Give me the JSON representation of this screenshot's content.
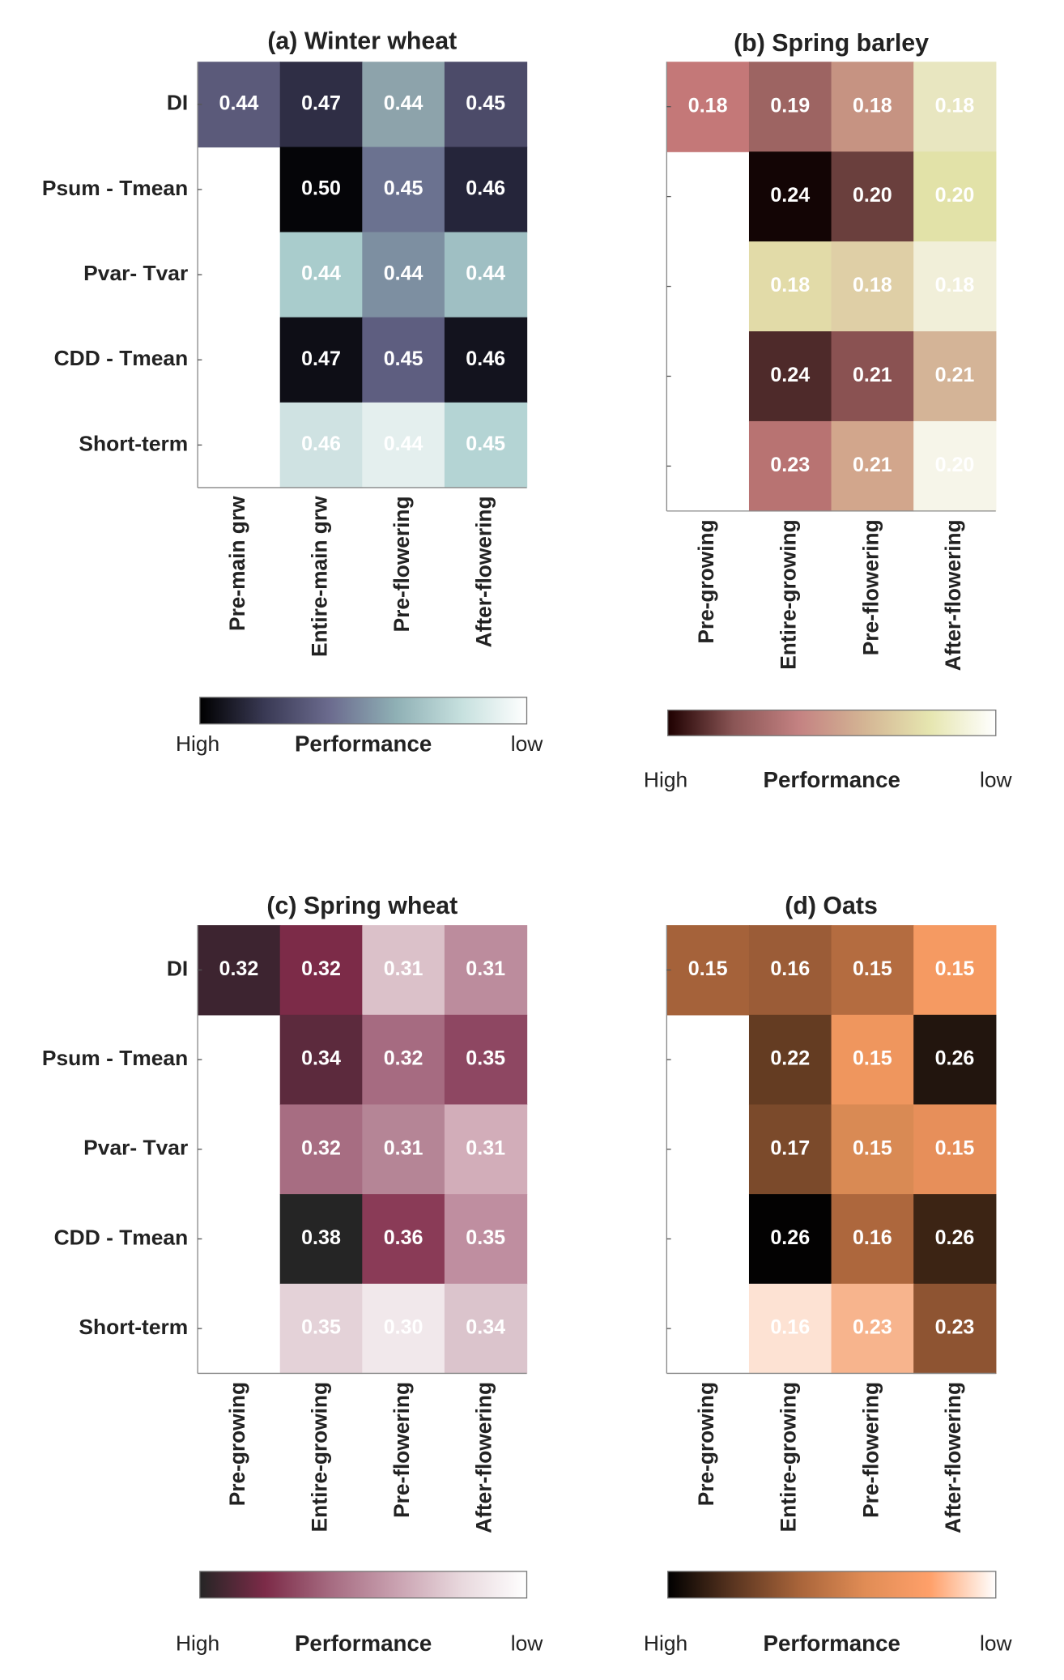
{
  "chart_data": [
    {
      "type": "heatmap",
      "title": "(a) Winter wheat",
      "rows": [
        "DI",
        "Psum - Tmean",
        "Pvar- Tvar",
        "CDD - Tmean",
        "Short-term"
      ],
      "columns": [
        "Pre-main grw",
        "Entire-main grw",
        "Pre-flowering",
        "After-flowering"
      ],
      "values": [
        [
          0.44,
          0.47,
          0.44,
          0.45
        ],
        [
          null,
          0.5,
          0.45,
          0.46
        ],
        [
          null,
          0.44,
          0.44,
          0.44
        ],
        [
          null,
          0.47,
          0.45,
          0.46
        ],
        [
          null,
          0.46,
          0.44,
          0.45
        ]
      ],
      "value_labels": [
        [
          "0.44",
          "0.47",
          "0.44",
          "0.45"
        ],
        [
          null,
          "0.50",
          "0.45",
          "0.46"
        ],
        [
          null,
          "0.44",
          "0.44",
          "0.44"
        ],
        [
          null,
          "0.47",
          "0.45",
          "0.46"
        ],
        [
          null,
          "0.46",
          "0.44",
          "0.45"
        ]
      ],
      "colors": [
        [
          "#5b5a7a",
          "#2f2e45",
          "#8da3ab",
          "#4c4b69"
        ],
        [
          null,
          "#050508",
          "#6b7290",
          "#25253a"
        ],
        [
          null,
          "#a9cccc",
          "#7d8fa1",
          "#9fbfc3"
        ],
        [
          null,
          "#0e0e16",
          "#5e5e80",
          "#13131e"
        ],
        [
          null,
          "#cfe2e2",
          "#e4efee",
          "#b4d4d4"
        ]
      ],
      "colorbar": {
        "label": "Performance",
        "left_label": "High",
        "right_label": "low",
        "colors": [
          "#000000",
          "#3a3a55",
          "#6c6c8f",
          "#8fb0b5",
          "#c6e0de",
          "#ffffff"
        ]
      }
    },
    {
      "type": "heatmap",
      "title": "(b) Spring barley",
      "rows": [
        null,
        null,
        null,
        null,
        null
      ],
      "columns": [
        "Pre-growing",
        "Entire-growing",
        "Pre-flowering",
        "After-flowering"
      ],
      "values": [
        [
          0.18,
          0.19,
          0.18,
          0.18
        ],
        [
          null,
          0.24,
          0.2,
          0.2
        ],
        [
          null,
          0.18,
          0.18,
          0.18
        ],
        [
          null,
          0.24,
          0.21,
          0.21
        ],
        [
          null,
          0.23,
          0.21,
          0.2
        ]
      ],
      "value_labels": [
        [
          "0.18",
          "0.19",
          "0.18",
          "0.18"
        ],
        [
          null,
          "0.24",
          "0.20",
          "0.20"
        ],
        [
          null,
          "0.18",
          "0.18",
          "0.18"
        ],
        [
          null,
          "0.24",
          "0.21",
          "0.21"
        ],
        [
          null,
          "0.23",
          "0.21",
          "0.20"
        ]
      ],
      "colors": [
        [
          "#c47878",
          "#9d6462",
          "#c69382",
          "#e8e6c0"
        ],
        [
          null,
          "#130505",
          "#6a3f3d",
          "#e2e2a8"
        ],
        [
          null,
          "#e2dba8",
          "#dfcfa6",
          "#f1efd9"
        ],
        [
          null,
          "#4e2a2a",
          "#8a5252",
          "#d4b497"
        ],
        [
          null,
          "#b87372",
          "#d2a68c",
          "#f6f5e9"
        ]
      ],
      "colorbar": {
        "label": "Performance",
        "left_label": "High",
        "right_label": "low",
        "colors": [
          "#1e0000",
          "#8a5555",
          "#c48282",
          "#d4b594",
          "#e6e6b0",
          "#ffffff"
        ]
      }
    },
    {
      "type": "heatmap",
      "title": "(c) Spring wheat",
      "rows": [
        "DI",
        "Psum - Tmean",
        "Pvar- Tvar",
        "CDD - Tmean",
        "Short-term"
      ],
      "columns": [
        "Pre-growing",
        "Entire-growing",
        "Pre-flowering",
        "After-flowering"
      ],
      "values": [
        [
          0.32,
          0.32,
          0.31,
          0.31
        ],
        [
          null,
          0.34,
          0.32,
          0.35
        ],
        [
          null,
          0.32,
          0.31,
          0.31
        ],
        [
          null,
          0.38,
          0.36,
          0.35
        ],
        [
          null,
          0.35,
          0.3,
          0.34
        ]
      ],
      "value_labels": [
        [
          "0.32",
          "0.32",
          "0.31",
          "0.31"
        ],
        [
          null,
          "0.34",
          "0.32",
          "0.35"
        ],
        [
          null,
          "0.32",
          "0.31",
          "0.31"
        ],
        [
          null,
          "0.38",
          "0.36",
          "0.35"
        ],
        [
          null,
          "0.35",
          "0.30",
          "0.34"
        ]
      ],
      "colors": [
        [
          "#3d2430",
          "#7c2b48",
          "#dbc1c9",
          "#bc8c9d"
        ],
        [
          null,
          "#5c2a3d",
          "#a66b81",
          "#8e4762"
        ],
        [
          null,
          "#a76d82",
          "#b58596",
          "#d2adb9"
        ],
        [
          null,
          "#252525",
          "#8a3b57",
          "#bf8ea0"
        ],
        [
          null,
          "#e4d2d8",
          "#f1e8eb",
          "#dbc4cc"
        ]
      ],
      "colorbar": {
        "label": "Performance",
        "left_label": "High",
        "right_label": "low",
        "colors": [
          "#252525",
          "#7c2b48",
          "#a66b81",
          "#c9a1b0",
          "#e8d8dd",
          "#ffffff"
        ]
      }
    },
    {
      "type": "heatmap",
      "title": "(d) Oats",
      "rows": [
        null,
        null,
        null,
        null,
        null
      ],
      "columns": [
        "Pre-growing",
        "Entire-growing",
        "Pre-flowering",
        "After-flowering"
      ],
      "values": [
        [
          0.15,
          0.16,
          0.15,
          0.15
        ],
        [
          null,
          0.22,
          0.15,
          0.26
        ],
        [
          null,
          0.17,
          0.15,
          0.15
        ],
        [
          null,
          0.26,
          0.16,
          0.26
        ],
        [
          null,
          0.16,
          0.23,
          0.23
        ]
      ],
      "value_labels": [
        [
          "0.15",
          "0.16",
          "0.15",
          "0.15"
        ],
        [
          null,
          "0.22",
          "0.15",
          "0.26"
        ],
        [
          null,
          "0.17",
          "0.15",
          "0.15"
        ],
        [
          null,
          "0.26",
          "0.16",
          "0.26"
        ],
        [
          null,
          "0.16",
          "0.23",
          "0.23"
        ]
      ],
      "colors": [
        [
          "#a5623a",
          "#9b5c37",
          "#b46c40",
          "#f59a62"
        ],
        [
          null,
          "#643c22",
          "#ef965e",
          "#22150e"
        ],
        [
          null,
          "#7b4a2b",
          "#d98a54",
          "#e78f5a"
        ],
        [
          null,
          "#030202",
          "#ad673d",
          "#3c2414"
        ],
        [
          null,
          "#fde2d3",
          "#f7b48d",
          "#8e5432"
        ]
      ],
      "colorbar": {
        "label": "Performance",
        "left_label": "High",
        "right_label": "low",
        "colors": [
          "#000000",
          "#5a3520",
          "#a8643a",
          "#e08c55",
          "#ffa06a",
          "#ffffff"
        ]
      }
    }
  ]
}
